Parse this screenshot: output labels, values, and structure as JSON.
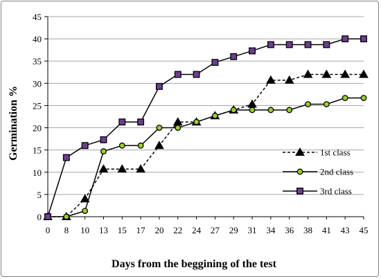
{
  "chart_data": {
    "type": "line",
    "xlabel": "Days from the beggining of the test",
    "ylabel": "Germination %",
    "ylim": [
      0,
      45
    ],
    "yticks": [
      0,
      5,
      10,
      15,
      20,
      25,
      30,
      35,
      40,
      45
    ],
    "categories": [
      "0",
      "8",
      "10",
      "13",
      "15",
      "17",
      "20",
      "22",
      "24",
      "27",
      "29",
      "31",
      "34",
      "36",
      "38",
      "41",
      "43",
      "45"
    ],
    "grid": "horizontal",
    "legend_position": "right",
    "series": [
      {
        "name": "1st class",
        "line_style": "dashed",
        "marker": "triangle",
        "marker_color": "#000000",
        "values": [
          0,
          0,
          4,
          10.7,
          10.7,
          10.7,
          16,
          21.3,
          21.3,
          22.7,
          24,
          25.3,
          30.7,
          30.7,
          32,
          32,
          32,
          32
        ]
      },
      {
        "name": "2nd class",
        "line_style": "solid",
        "marker": "circle",
        "marker_color": "#9acd32",
        "values": [
          0,
          0,
          1.3,
          14.7,
          16,
          16,
          20,
          20,
          21.3,
          22.7,
          24,
          24,
          24,
          24,
          25.3,
          25.3,
          26.7,
          26.7
        ]
      },
      {
        "name": "3rd class",
        "line_style": "solid",
        "marker": "square",
        "marker_color": "#6b3f8f",
        "values": [
          0,
          13.3,
          16,
          17.3,
          21.3,
          21.3,
          29.3,
          32,
          32,
          34.7,
          36,
          37.3,
          38.7,
          38.7,
          38.7,
          38.7,
          40,
          40
        ]
      }
    ]
  }
}
